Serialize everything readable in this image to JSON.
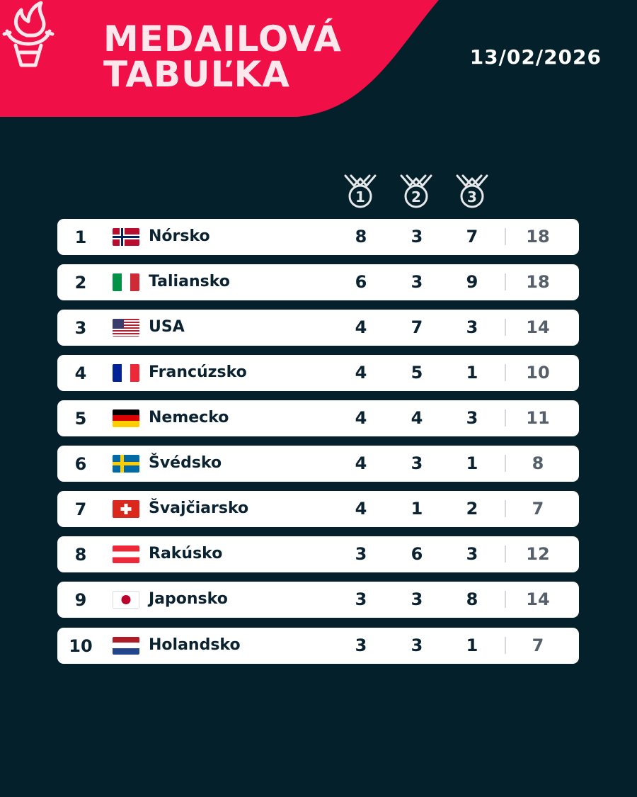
{
  "header": {
    "title_line1": "MEDAILOVÁ",
    "title_line2": "TABUĽKA",
    "date": "13/02/2026",
    "banner_color": "#f00f46",
    "background_color": "#03202b"
  },
  "columns": {
    "gold_icon": "medal-1-icon",
    "silver_icon": "medal-2-icon",
    "bronze_icon": "medal-3-icon",
    "gold_number": "1",
    "silver_number": "2",
    "bronze_number": "3"
  },
  "rows": [
    {
      "rank": "1",
      "country": "Nórsko",
      "flag": "norway-flag-icon",
      "gold": "8",
      "silver": "3",
      "bronze": "7",
      "total": "18"
    },
    {
      "rank": "2",
      "country": "Taliansko",
      "flag": "italy-flag-icon",
      "gold": "6",
      "silver": "3",
      "bronze": "9",
      "total": "18"
    },
    {
      "rank": "3",
      "country": "USA",
      "flag": "usa-flag-icon",
      "gold": "4",
      "silver": "7",
      "bronze": "3",
      "total": "14"
    },
    {
      "rank": "4",
      "country": "Francúzsko",
      "flag": "france-flag-icon",
      "gold": "4",
      "silver": "5",
      "bronze": "1",
      "total": "10"
    },
    {
      "rank": "5",
      "country": "Nemecko",
      "flag": "germany-flag-icon",
      "gold": "4",
      "silver": "4",
      "bronze": "3",
      "total": "11"
    },
    {
      "rank": "6",
      "country": "Švédsko",
      "flag": "sweden-flag-icon",
      "gold": "4",
      "silver": "3",
      "bronze": "1",
      "total": "8"
    },
    {
      "rank": "7",
      "country": "Švajčiarsko",
      "flag": "switzerland-flag-icon",
      "gold": "4",
      "silver": "1",
      "bronze": "2",
      "total": "7"
    },
    {
      "rank": "8",
      "country": "Rakúsko",
      "flag": "austria-flag-icon",
      "gold": "3",
      "silver": "6",
      "bronze": "3",
      "total": "12"
    },
    {
      "rank": "9",
      "country": "Japonsko",
      "flag": "japan-flag-icon",
      "gold": "3",
      "silver": "3",
      "bronze": "8",
      "total": "14"
    },
    {
      "rank": "10",
      "country": "Holandsko",
      "flag": "netherlands-flag-icon",
      "gold": "3",
      "silver": "3",
      "bronze": "1",
      "total": "7"
    }
  ]
}
